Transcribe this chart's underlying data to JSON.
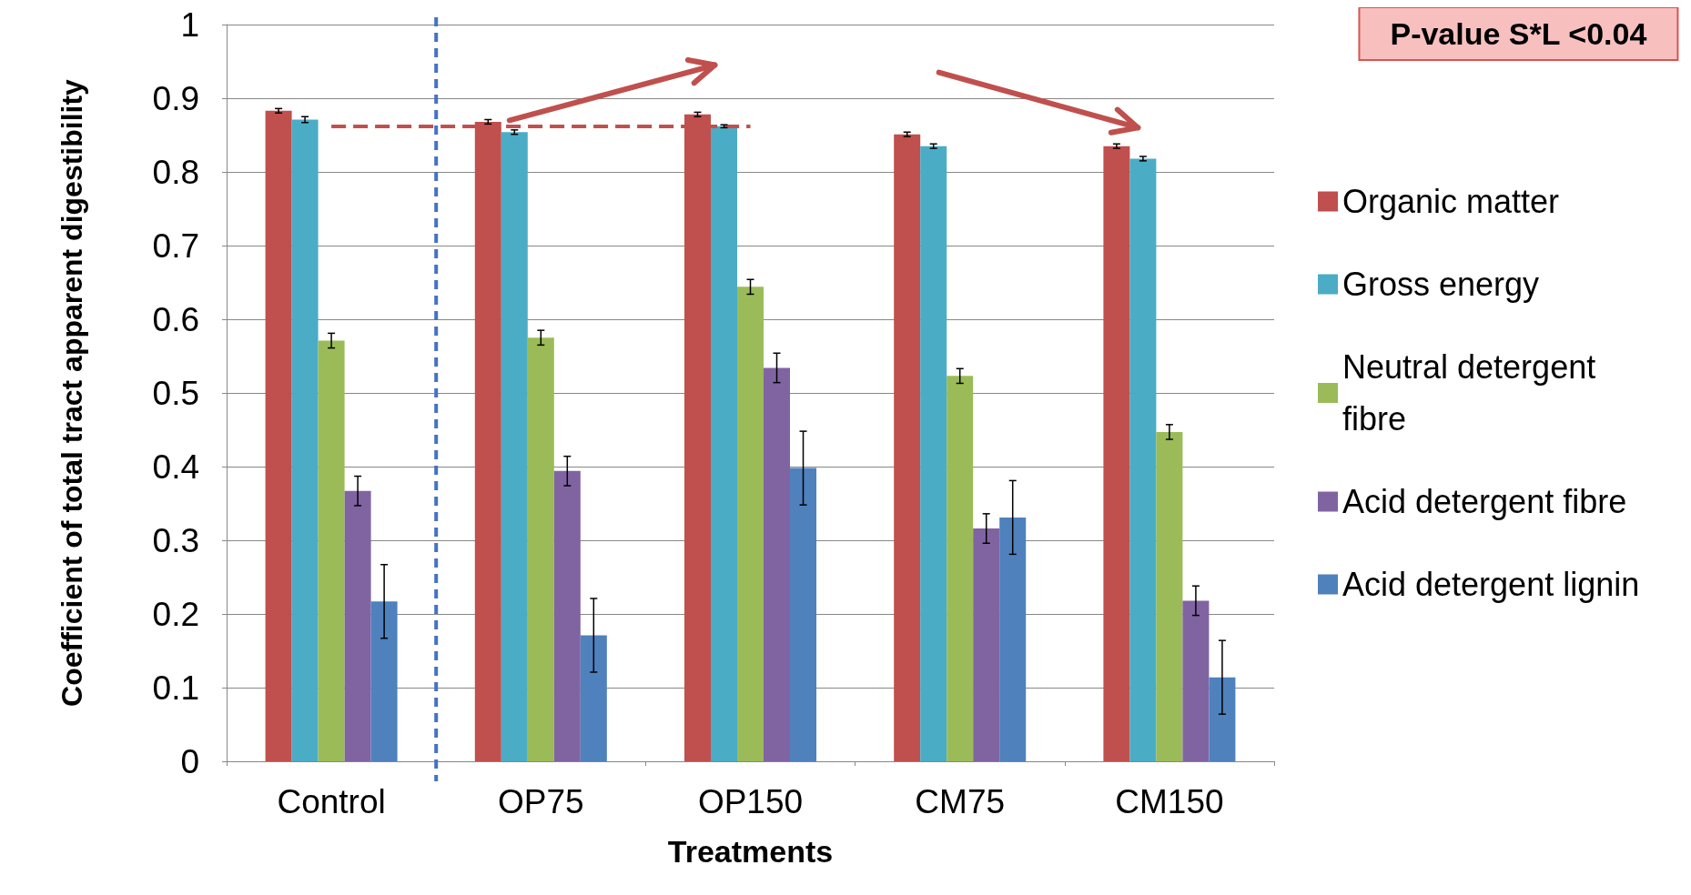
{
  "chart_data": {
    "type": "bar",
    "xlabel": "Treatments",
    "ylabel": "Coefficient of total tract apparent digestibility",
    "categories": [
      "Control",
      "OP75",
      "OP150",
      "CM75",
      "CM150"
    ],
    "series": [
      {
        "name": "Organic matter",
        "color": "#c0504d",
        "values": [
          0.883,
          0.868,
          0.878,
          0.851,
          0.835
        ],
        "errors": [
          0.003,
          0.003,
          0.003,
          0.003,
          0.003
        ]
      },
      {
        "name": "Gross energy",
        "color": "#4bacc6",
        "values": [
          0.871,
          0.854,
          0.862,
          0.835,
          0.818
        ],
        "errors": [
          0.004,
          0.003,
          0.002,
          0.003,
          0.003
        ]
      },
      {
        "name": "Neutral detergent fibre",
        "color": "#9bbb59",
        "values": [
          0.571,
          0.575,
          0.644,
          0.523,
          0.447
        ],
        "errors": [
          0.01,
          0.01,
          0.01,
          0.01,
          0.01
        ]
      },
      {
        "name": "Acid detergent fibre",
        "color": "#8064a2",
        "values": [
          0.367,
          0.394,
          0.534,
          0.316,
          0.218
        ],
        "errors": [
          0.02,
          0.02,
          0.02,
          0.02,
          0.02
        ]
      },
      {
        "name": "Acid detergent lignin",
        "color": "#4f81bd",
        "values": [
          0.217,
          0.171,
          0.398,
          0.331,
          0.114
        ],
        "errors": [
          0.05,
          0.05,
          0.05,
          0.05,
          0.05
        ]
      }
    ],
    "ylim": [
      0,
      1
    ],
    "yticks": [
      0,
      0.1,
      0.2,
      0.3,
      0.4,
      0.5,
      0.6,
      0.7,
      0.8,
      0.9,
      1
    ],
    "grid": "y",
    "legend": "right",
    "ref_lines": [
      {
        "axis": "y",
        "value": 0.862,
        "color": "#c0504d",
        "line_style": "dashed"
      },
      {
        "axis": "x",
        "value": "OP75",
        "color": "#4472c4",
        "line_style": "dashed"
      }
    ],
    "annotations": [
      "P-value S*L <0.04"
    ]
  }
}
